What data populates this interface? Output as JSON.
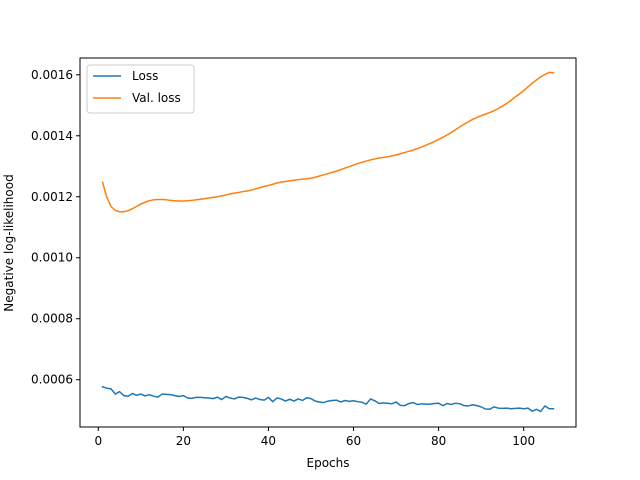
{
  "chart_data": {
    "type": "line",
    "title": "",
    "xlabel": "Epochs",
    "ylabel": "Negative log-likelihood",
    "xlim": [
      -4.3,
      112.3
    ],
    "ylim": [
      0.000445,
      0.001655
    ],
    "xticks": [
      0,
      20,
      40,
      60,
      80,
      100
    ],
    "xtick_labels": [
      "0",
      "20",
      "40",
      "60",
      "80",
      "100"
    ],
    "yticks": [
      0.0006,
      0.0008,
      0.001,
      0.0012,
      0.0014,
      0.0016
    ],
    "ytick_labels": [
      "0.0006",
      "0.0008",
      "0.0010",
      "0.0012",
      "0.0014",
      "0.0016"
    ],
    "grid": false,
    "legend_position": "upper-left",
    "series": [
      {
        "name": "Loss",
        "color": "#1f77b4",
        "x": [
          1,
          2,
          3,
          4,
          5,
          6,
          7,
          8,
          9,
          10,
          11,
          12,
          13,
          14,
          15,
          16,
          17,
          18,
          19,
          20,
          21,
          22,
          23,
          24,
          25,
          26,
          27,
          28,
          29,
          30,
          31,
          32,
          33,
          34,
          35,
          36,
          37,
          38,
          39,
          40,
          41,
          42,
          43,
          44,
          45,
          46,
          47,
          48,
          49,
          50,
          51,
          52,
          53,
          54,
          55,
          56,
          57,
          58,
          59,
          60,
          61,
          62,
          63,
          64,
          65,
          66,
          67,
          68,
          69,
          70,
          71,
          72,
          73,
          74,
          75,
          76,
          77,
          78,
          79,
          80,
          81,
          82,
          83,
          84,
          85,
          86,
          87,
          88,
          89,
          90,
          91,
          92,
          93,
          94,
          95,
          96,
          97,
          98,
          99,
          100,
          101,
          102,
          103,
          104,
          105,
          106,
          107
        ],
        "values": [
          0.000577,
          0.000572,
          0.00057,
          0.000553,
          0.000561,
          0.000548,
          0.000546,
          0.000555,
          0.000549,
          0.000553,
          0.000547,
          0.000551,
          0.000546,
          0.000543,
          0.000553,
          0.000552,
          0.000551,
          0.000548,
          0.000545,
          0.000548,
          0.00054,
          0.000539,
          0.000542,
          0.000542,
          0.000541,
          0.00054,
          0.000538,
          0.000543,
          0.000535,
          0.000545,
          0.00054,
          0.000537,
          0.000543,
          0.000542,
          0.000539,
          0.000534,
          0.00054,
          0.000535,
          0.000533,
          0.000542,
          0.000528,
          0.00054,
          0.000537,
          0.00053,
          0.000536,
          0.00053,
          0.000537,
          0.000532,
          0.000541,
          0.000538,
          0.00053,
          0.000527,
          0.000525,
          0.00053,
          0.000532,
          0.000533,
          0.000527,
          0.000532,
          0.000529,
          0.000531,
          0.000528,
          0.000526,
          0.00052,
          0.000537,
          0.000531,
          0.000522,
          0.000524,
          0.000523,
          0.000521,
          0.000527,
          0.000516,
          0.000515,
          0.000522,
          0.000525,
          0.000519,
          0.000521,
          0.00052,
          0.00052,
          0.000522,
          0.000523,
          0.000515,
          0.000522,
          0.000519,
          0.000523,
          0.000521,
          0.000515,
          0.000514,
          0.000518,
          0.000515,
          0.000511,
          0.000504,
          0.000503,
          0.000511,
          0.000507,
          0.000506,
          0.000507,
          0.000505,
          0.000506,
          0.000507,
          0.000505,
          0.000507,
          0.000497,
          0.000503,
          0.000496,
          0.000514,
          0.000505,
          0.000505
        ]
      },
      {
        "name": "Val. loss",
        "color": "#ff7f0e",
        "x": [
          1,
          2,
          3,
          4,
          5,
          6,
          7,
          8,
          9,
          10,
          11,
          12,
          13,
          14,
          15,
          16,
          17,
          18,
          19,
          20,
          21,
          22,
          23,
          24,
          25,
          26,
          27,
          28,
          29,
          30,
          31,
          32,
          33,
          34,
          35,
          36,
          37,
          38,
          39,
          40,
          41,
          42,
          43,
          44,
          45,
          46,
          47,
          48,
          49,
          50,
          51,
          52,
          53,
          54,
          55,
          56,
          57,
          58,
          59,
          60,
          61,
          62,
          63,
          64,
          65,
          66,
          67,
          68,
          69,
          70,
          71,
          72,
          73,
          74,
          75,
          76,
          77,
          78,
          79,
          80,
          81,
          82,
          83,
          84,
          85,
          86,
          87,
          88,
          89,
          90,
          91,
          92,
          93,
          94,
          95,
          96,
          97,
          98,
          99,
          100,
          101,
          102,
          103,
          104,
          105,
          106,
          107
        ],
        "values": [
          0.001248,
          0.001198,
          0.001168,
          0.001155,
          0.001151,
          0.001151,
          0.001154,
          0.001161,
          0.001168,
          0.001176,
          0.001182,
          0.001187,
          0.00119,
          0.001191,
          0.001191,
          0.00119,
          0.001188,
          0.001187,
          0.001186,
          0.001186,
          0.001187,
          0.001188,
          0.00119,
          0.001192,
          0.001194,
          0.001196,
          0.001198,
          0.0012,
          0.001203,
          0.001206,
          0.001209,
          0.001212,
          0.001214,
          0.001217,
          0.001219,
          0.001222,
          0.001226,
          0.00123,
          0.001234,
          0.001237,
          0.001241,
          0.001245,
          0.001248,
          0.00125,
          0.001252,
          0.001254,
          0.001256,
          0.001258,
          0.001259,
          0.001261,
          0.001264,
          0.001268,
          0.001272,
          0.001276,
          0.00128,
          0.001284,
          0.001289,
          0.001294,
          0.001299,
          0.001304,
          0.001309,
          0.001313,
          0.001317,
          0.001321,
          0.001324,
          0.001327,
          0.001329,
          0.001331,
          0.001334,
          0.001337,
          0.001341,
          0.001345,
          0.001349,
          0.001353,
          0.001358,
          0.001363,
          0.001369,
          0.001375,
          0.001381,
          0.001388,
          0.001395,
          0.001403,
          0.001411,
          0.00142,
          0.001429,
          0.001438,
          0.001446,
          0.001454,
          0.00146,
          0.001466,
          0.001471,
          0.001476,
          0.001482,
          0.001489,
          0.001497,
          0.001506,
          0.001516,
          0.001527,
          0.001537,
          0.001548,
          0.00156,
          0.001572,
          0.001583,
          0.001593,
          0.001601,
          0.001608,
          0.001606
        ]
      }
    ]
  }
}
